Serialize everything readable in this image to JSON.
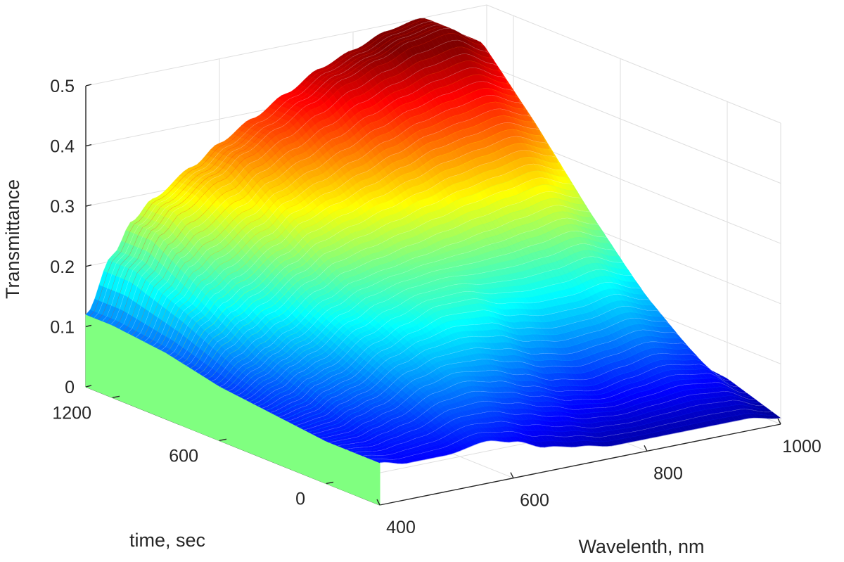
{
  "chart_data": {
    "type": "surface",
    "colormap": "jet",
    "xlabel": "Wavelenth, nm",
    "ylabel": "time, sec",
    "zlabel": "Transmittance",
    "xlim": [
      400,
      1000
    ],
    "ylim": [
      -300,
      1350
    ],
    "zlim": [
      0,
      0.5
    ],
    "xticks": [
      400,
      600,
      800,
      1000
    ],
    "yticks": [
      0,
      600,
      1200
    ],
    "zticks": [
      0,
      0.1,
      0.2,
      0.3,
      0.4,
      0.5
    ],
    "grid": true,
    "series": [
      {
        "time": 1200,
        "wavelength": [
          400,
          440,
          470,
          500,
          560,
          600,
          650,
          700,
          750,
          800,
          850,
          900,
          950,
          1000
        ],
        "transmittance": [
          0.12,
          0.21,
          0.26,
          0.29,
          0.33,
          0.36,
          0.39,
          0.42,
          0.45,
          0.47,
          0.49,
          0.5,
          0.47,
          0.1
        ]
      },
      {
        "time": 900,
        "wavelength": [
          400,
          440,
          470,
          500,
          560,
          600,
          650,
          700,
          750,
          800,
          850,
          900,
          950,
          1000
        ],
        "transmittance": [
          0.11,
          0.17,
          0.2,
          0.22,
          0.26,
          0.29,
          0.31,
          0.33,
          0.35,
          0.37,
          0.38,
          0.39,
          0.37,
          0.08
        ]
      },
      {
        "time": 600,
        "wavelength": [
          400,
          440,
          470,
          500,
          560,
          600,
          650,
          700,
          750,
          800,
          850,
          900,
          950,
          1000
        ],
        "transmittance": [
          0.09,
          0.12,
          0.14,
          0.16,
          0.2,
          0.22,
          0.23,
          0.24,
          0.25,
          0.26,
          0.27,
          0.28,
          0.26,
          0.06
        ]
      },
      {
        "time": 300,
        "wavelength": [
          400,
          440,
          470,
          500,
          560,
          600,
          650,
          700,
          750,
          800,
          850,
          900,
          950,
          1000
        ],
        "transmittance": [
          0.08,
          0.09,
          0.11,
          0.12,
          0.16,
          0.18,
          0.2,
          0.2,
          0.18,
          0.17,
          0.17,
          0.18,
          0.16,
          0.05
        ]
      },
      {
        "time": 0,
        "wavelength": [
          400,
          440,
          470,
          500,
          560,
          600,
          650,
          700,
          750,
          800,
          850,
          900,
          950,
          1000
        ],
        "transmittance": [
          0.07,
          0.07,
          0.08,
          0.09,
          0.12,
          0.13,
          0.12,
          0.1,
          0.08,
          0.07,
          0.08,
          0.09,
          0.08,
          0.04
        ]
      },
      {
        "time": -300,
        "wavelength": [
          400,
          440,
          470,
          500,
          560,
          600,
          650,
          700,
          750,
          800,
          850,
          900,
          950,
          1000
        ],
        "transmittance": [
          0.07,
          0.06,
          0.06,
          0.06,
          0.07,
          0.06,
          0.04,
          0.03,
          0.02,
          0.02,
          0.02,
          0.02,
          0.02,
          0.01
        ]
      }
    ]
  }
}
